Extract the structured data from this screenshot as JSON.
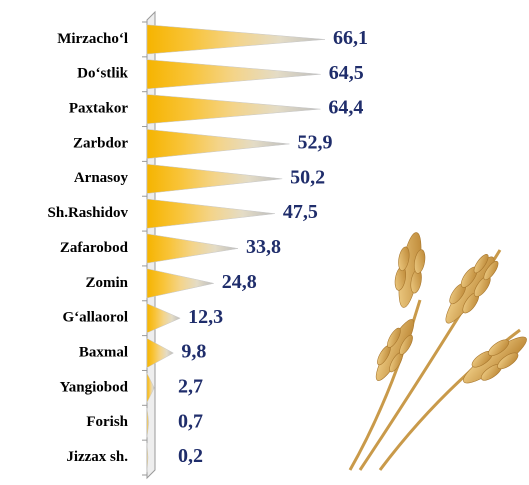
{
  "chart_data": {
    "type": "cone-bar",
    "categories": [
      "Mirzacho‘l",
      "Do‘stlik",
      "Paxtakor",
      "Zarbdor",
      "Arnasoy",
      "Sh.Rashidov",
      "Zafarobod",
      "Zomin",
      "G‘allaorol",
      "Baxmal",
      "Yangiobod",
      "Forish",
      "Jizzax sh."
    ],
    "values": [
      66.1,
      64.5,
      64.4,
      52.9,
      50.2,
      47.5,
      33.8,
      24.8,
      12.3,
      9.8,
      2.7,
      0.7,
      0.2
    ],
    "value_labels": [
      "66,1",
      "64,5",
      "64,4",
      "52,9",
      "50,2",
      "47,5",
      "33,8",
      "24,8",
      "12,3",
      "9,8",
      "2,7",
      "0,7",
      "0,2"
    ]
  }
}
